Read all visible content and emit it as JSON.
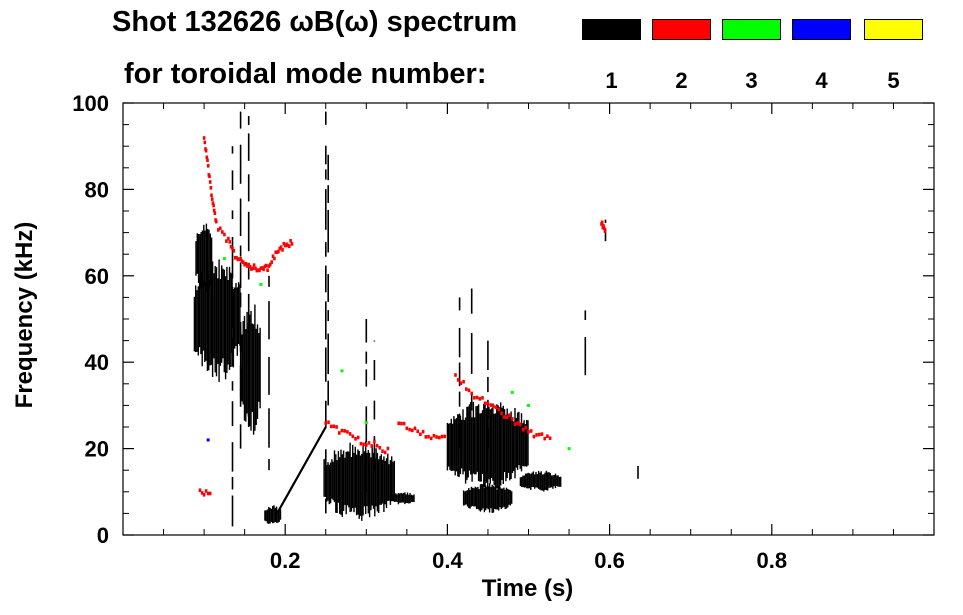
{
  "title_line1": "Shot 132626 ωB(ω) spectrum",
  "title_line2": "for toroidal mode number:",
  "legend": [
    {
      "label": "1",
      "color": "#000000"
    },
    {
      "label": "2",
      "color": "#ff0000"
    },
    {
      "label": "3",
      "color": "#00ff00"
    },
    {
      "label": "4",
      "color": "#0000ff"
    },
    {
      "label": "5",
      "color": "#ffff00"
    }
  ],
  "chart_data": {
    "type": "heatmap",
    "title": "Shot 132626 ωB(ω) spectrum",
    "xlabel": "Time (s)",
    "ylabel": "Frequency (kHz)",
    "xlim": [
      0.0,
      1.0
    ],
    "ylim": [
      0,
      100
    ],
    "xticks": [
      {
        "value": 0.2,
        "label": "0.2"
      },
      {
        "value": 0.4,
        "label": "0.4"
      },
      {
        "value": 0.6,
        "label": "0.6"
      },
      {
        "value": 0.8,
        "label": "0.8"
      }
    ],
    "yticks": [
      {
        "value": 0,
        "label": "0"
      },
      {
        "value": 20,
        "label": "20"
      },
      {
        "value": 40,
        "label": "40"
      },
      {
        "value": 60,
        "label": "60"
      },
      {
        "value": 80,
        "label": "80"
      },
      {
        "value": 100,
        "label": "100"
      }
    ],
    "xminor": [
      0.05,
      0.1,
      0.15,
      0.25,
      0.3,
      0.35,
      0.45,
      0.5,
      0.55,
      0.65,
      0.7,
      0.75,
      0.85,
      0.9,
      0.95
    ],
    "yminor": [
      5,
      10,
      15,
      25,
      30,
      35,
      45,
      50,
      55,
      65,
      70,
      75,
      85,
      90,
      95
    ],
    "mode_colors": {
      "1": "#000000",
      "2": "#ff0000",
      "3": "#00ff00",
      "4": "#0000ff",
      "5": "#ffff00"
    },
    "blobs": [
      {
        "mode": 1,
        "t0": 0.088,
        "t1": 0.145,
        "f0": 35,
        "f1": 65
      },
      {
        "mode": 1,
        "t0": 0.09,
        "t1": 0.11,
        "f0": 55,
        "f1": 74
      },
      {
        "mode": 1,
        "t0": 0.145,
        "t1": 0.17,
        "f0": 22,
        "f1": 55
      },
      {
        "mode": 1,
        "t0": 0.175,
        "t1": 0.195,
        "f0": 2,
        "f1": 7
      },
      {
        "mode": 1,
        "t0": 0.248,
        "t1": 0.335,
        "f0": 3,
        "f1": 22
      },
      {
        "mode": 1,
        "t0": 0.33,
        "t1": 0.36,
        "f0": 7,
        "f1": 10
      },
      {
        "mode": 1,
        "t0": 0.4,
        "t1": 0.5,
        "f0": 10,
        "f1": 32
      },
      {
        "mode": 1,
        "t0": 0.49,
        "t1": 0.54,
        "f0": 10,
        "f1": 15
      },
      {
        "mode": 1,
        "t0": 0.42,
        "t1": 0.48,
        "f0": 5,
        "f1": 12
      }
    ],
    "streaks": [
      {
        "mode": 1,
        "t": 0.135,
        "f0": 2,
        "f1": 90
      },
      {
        "mode": 1,
        "t": 0.145,
        "f0": 20,
        "f1": 98
      },
      {
        "mode": 1,
        "t": 0.155,
        "f0": 25,
        "f1": 97
      },
      {
        "mode": 1,
        "t": 0.18,
        "f0": 15,
        "f1": 60
      },
      {
        "mode": 1,
        "t": 0.25,
        "f0": 5,
        "f1": 98
      },
      {
        "mode": 1,
        "t": 0.253,
        "f0": 30,
        "f1": 88
      },
      {
        "mode": 1,
        "t": 0.3,
        "f0": 10,
        "f1": 50
      },
      {
        "mode": 1,
        "t": 0.31,
        "f0": 15,
        "f1": 45
      },
      {
        "mode": 1,
        "t": 0.415,
        "f0": 20,
        "f1": 55
      },
      {
        "mode": 1,
        "t": 0.43,
        "f0": 20,
        "f1": 60
      },
      {
        "mode": 1,
        "t": 0.45,
        "f0": 20,
        "f1": 45
      },
      {
        "mode": 1,
        "t": 0.57,
        "f0": 37,
        "f1": 52
      },
      {
        "mode": 1,
        "t": 0.635,
        "f0": 13,
        "f1": 16
      },
      {
        "mode": 1,
        "t": 0.595,
        "f0": 68,
        "f1": 73
      }
    ],
    "chirp": {
      "mode": 1,
      "t": [
        0.19,
        0.25
      ],
      "f": [
        5,
        25
      ]
    },
    "mode2_curves": [
      [
        [
          0.115,
          72
        ],
        [
          0.13,
          68
        ],
        [
          0.14,
          64
        ],
        [
          0.15,
          63
        ],
        [
          0.16,
          62
        ],
        [
          0.17,
          61
        ],
        [
          0.18,
          62
        ],
        [
          0.19,
          66
        ],
        [
          0.2,
          67
        ],
        [
          0.21,
          68
        ]
      ],
      [
        [
          0.1,
          92
        ],
        [
          0.105,
          85
        ],
        [
          0.11,
          78
        ],
        [
          0.115,
          72
        ]
      ],
      [
        [
          0.25,
          26
        ],
        [
          0.27,
          24
        ],
        [
          0.29,
          22
        ],
        [
          0.31,
          21
        ],
        [
          0.33,
          19
        ]
      ],
      [
        [
          0.34,
          26
        ],
        [
          0.36,
          24
        ],
        [
          0.38,
          23
        ],
        [
          0.4,
          22
        ]
      ],
      [
        [
          0.41,
          37
        ],
        [
          0.43,
          33
        ],
        [
          0.45,
          30
        ],
        [
          0.47,
          28
        ],
        [
          0.49,
          25
        ],
        [
          0.51,
          23
        ],
        [
          0.53,
          22
        ]
      ],
      [
        [
          0.095,
          10
        ],
        [
          0.11,
          9
        ]
      ],
      [
        [
          0.59,
          72
        ],
        [
          0.595,
          70
        ]
      ]
    ],
    "mode3_points": [
      [
        0.125,
        64
      ],
      [
        0.27,
        38
      ],
      [
        0.3,
        26
      ],
      [
        0.48,
        33
      ],
      [
        0.5,
        30
      ],
      [
        0.55,
        20
      ],
      [
        0.17,
        58
      ]
    ],
    "mode4_points": [
      [
        0.105,
        22
      ]
    ]
  }
}
